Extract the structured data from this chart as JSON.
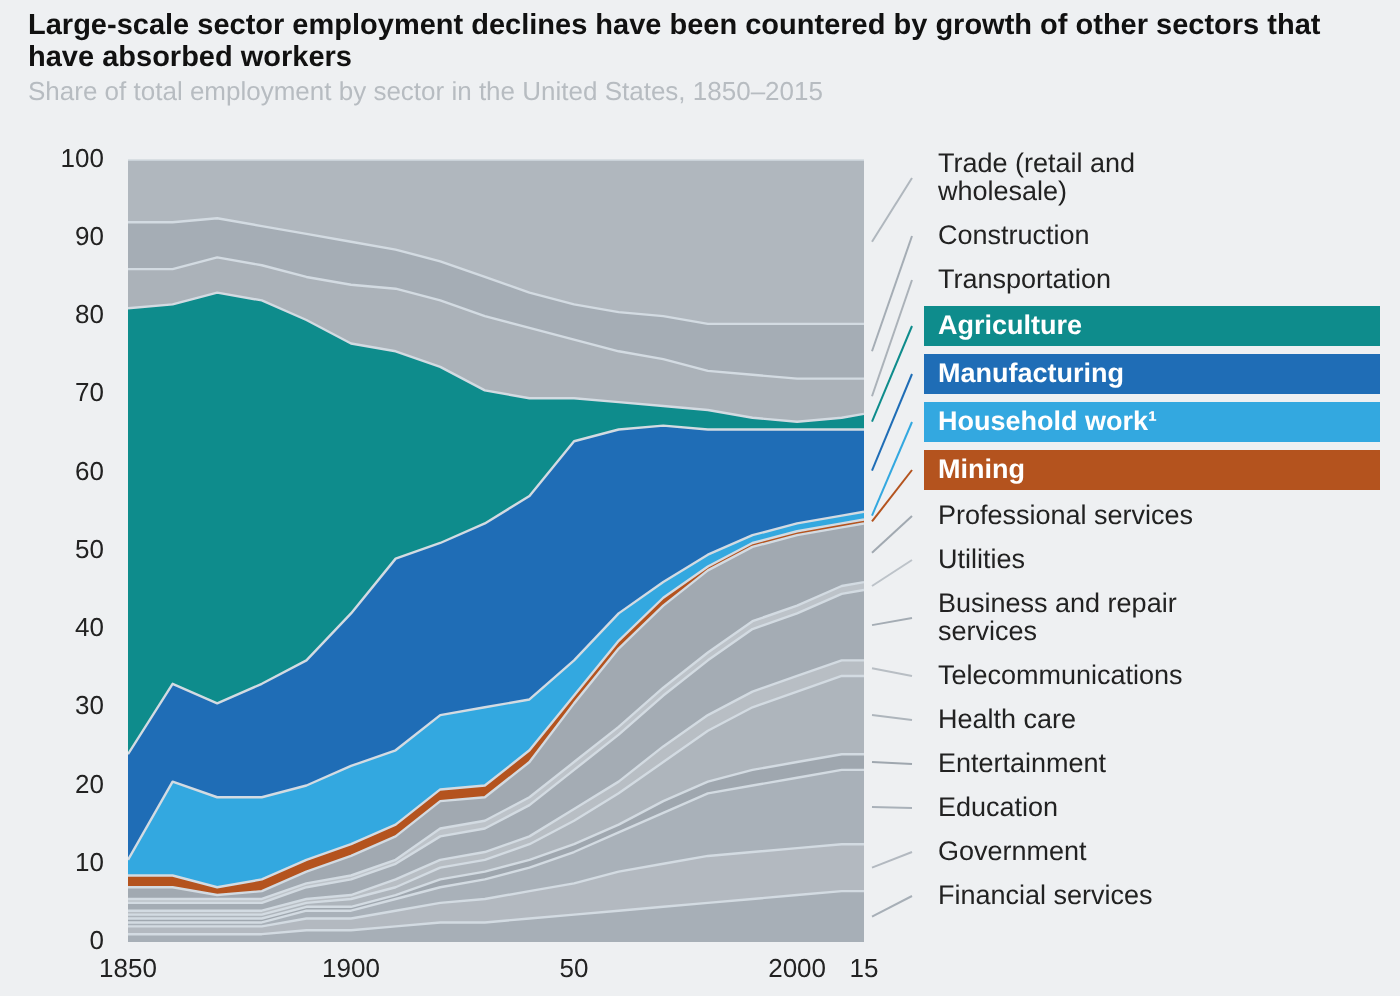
{
  "chart_data": {
    "type": "area",
    "stacked": true,
    "title": "Large-scale sector employment declines have been countered by growth of other sectors that have absorbed workers",
    "subtitle": "Share of total employment by sector in the United States, 1850–2015",
    "x": [
      1850,
      1860,
      1870,
      1880,
      1890,
      1900,
      1910,
      1920,
      1930,
      1940,
      1950,
      1960,
      1970,
      1980,
      1990,
      2000,
      2010,
      2015
    ],
    "xlim": [
      1850,
      2015
    ],
    "xticks": [
      1850,
      1900,
      {
        "value": 1950,
        "label": "50"
      },
      2000,
      {
        "value": 2015,
        "label": "15"
      }
    ],
    "ylim": [
      0,
      100
    ],
    "yticks": [
      0,
      10,
      20,
      30,
      40,
      50,
      60,
      70,
      80,
      90,
      100
    ],
    "grid": false,
    "legend": "right",
    "series": [
      {
        "name": "Financial services",
        "color": "#a7afb7",
        "values": [
          1,
          1,
          1,
          1,
          1.5,
          1.5,
          2,
          2.5,
          2.5,
          3,
          3.5,
          4,
          4.5,
          5,
          5.5,
          6,
          6.5,
          6.5
        ]
      },
      {
        "name": "Government",
        "color": "#b3b9c0",
        "values": [
          1,
          1,
          1,
          1,
          1.5,
          1.5,
          2,
          2.5,
          3,
          3.5,
          4,
          5,
          5.5,
          6,
          6,
          6,
          6,
          6
        ]
      },
      {
        "name": "Education",
        "color": "#a9b1b9",
        "values": [
          0.5,
          0.5,
          0.5,
          0.5,
          1,
          1,
          1.5,
          2,
          2.5,
          3,
          4,
          5,
          6.5,
          8,
          8.5,
          9,
          9.5,
          9.5
        ]
      },
      {
        "name": "Entertainment",
        "color": "#9fa7af",
        "values": [
          0.5,
          0.5,
          0.5,
          0.5,
          0.5,
          0.5,
          0.5,
          1,
          1,
          1,
          1,
          1,
          1.5,
          1.5,
          2,
          2,
          2,
          2
        ]
      },
      {
        "name": "Health care",
        "color": "#aeb5bc",
        "values": [
          0.5,
          0.5,
          0.5,
          0.5,
          0.5,
          1,
          1,
          1.5,
          1.5,
          2,
          3,
          4,
          5,
          6.5,
          8,
          9,
          10,
          10
        ]
      },
      {
        "name": "Telecommunications",
        "color": "#b8bec4",
        "values": [
          0.5,
          0.5,
          0.5,
          0.5,
          0.5,
          0.5,
          1,
          1,
          1,
          1,
          1.5,
          1.5,
          2,
          2,
          2,
          2,
          2,
          2
        ]
      },
      {
        "name": "Business and repair services",
        "color": "#a4acb4",
        "values": [
          1,
          1,
          1,
          1,
          1.5,
          2,
          2,
          3,
          3,
          4,
          5,
          6,
          6.5,
          7,
          8,
          8,
          8.5,
          9
        ]
      },
      {
        "name": "Utilities",
        "color": "#bdc3c9",
        "values": [
          0.5,
          0.5,
          0.5,
          0.5,
          0.5,
          0.5,
          0.5,
          1,
          1,
          1,
          1,
          1,
          1,
          1,
          1,
          1,
          1,
          1
        ]
      },
      {
        "name": "Professional services",
        "color": "#a1a9b1",
        "values": [
          1.5,
          1.5,
          0.5,
          1,
          1.5,
          2.5,
          3,
          3.5,
          3,
          4.5,
          7.5,
          10,
          10.5,
          10.5,
          9.5,
          9,
          7.5,
          7.5
        ]
      },
      {
        "name": "Mining",
        "color": "#b4531e",
        "values": [
          1.5,
          1.5,
          1,
          1.5,
          1.5,
          1.5,
          1.5,
          1.5,
          1.5,
          1.5,
          1,
          1,
          1,
          0.5,
          0.5,
          0.5,
          0.5,
          0.5
        ]
      },
      {
        "name": "Household work¹",
        "color": "#33a8e0",
        "values": [
          2,
          12,
          11.5,
          10.5,
          9.5,
          10,
          9.5,
          9.5,
          10,
          6.5,
          4.5,
          3.5,
          2,
          1.5,
          1,
          1,
          1,
          1
        ]
      },
      {
        "name": "Manufacturing",
        "color": "#1f6db6",
        "values": [
          13.5,
          12.5,
          12,
          14.5,
          16,
          19.5,
          24.5,
          22,
          23.5,
          26,
          28,
          23.5,
          20,
          16,
          13.5,
          12,
          11,
          10.5
        ]
      },
      {
        "name": "Agriculture",
        "color": "#0e8c8c",
        "values": [
          57,
          48.5,
          52.5,
          49,
          43.5,
          34.5,
          26.5,
          22.5,
          17,
          12.5,
          5.5,
          3.5,
          2.5,
          2.5,
          1.5,
          1,
          1.5,
          2
        ]
      },
      {
        "name": "Transportation",
        "color": "#abb2b9",
        "values": [
          5,
          4.5,
          4.5,
          4.5,
          5.5,
          7.5,
          8,
          8.5,
          9.5,
          9,
          7.5,
          6.5,
          6,
          5,
          5.5,
          5.5,
          5,
          4.5
        ]
      },
      {
        "name": "Construction",
        "color": "#a5adb5",
        "values": [
          6,
          6,
          5,
          5,
          5.5,
          5.5,
          5,
          5,
          5,
          4.5,
          4.5,
          5,
          5.5,
          6,
          6.5,
          7,
          7,
          7
        ]
      },
      {
        "name": "Trade (retail and wholesale)",
        "color": "#b0b7be",
        "values": [
          8,
          8,
          7.5,
          8.5,
          9.5,
          10.5,
          11.5,
          13,
          15,
          17,
          18.5,
          19.5,
          20,
          21,
          21,
          21,
          21,
          21
        ]
      }
    ]
  }
}
